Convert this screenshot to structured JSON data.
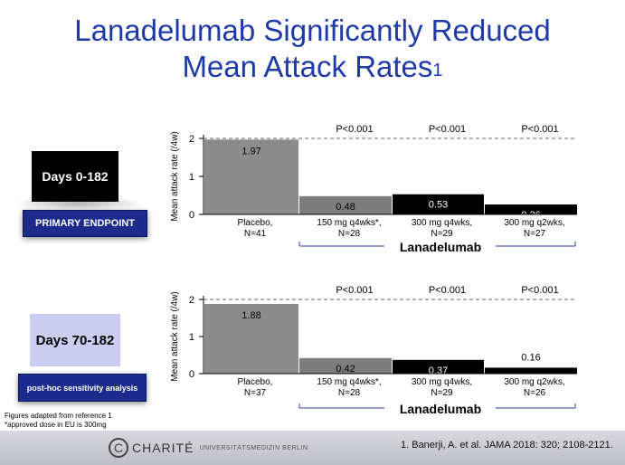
{
  "title": {
    "line1": "Lanadelumab Significantly Reduced",
    "line2": "Mean Attack Rates",
    "superscript": "1"
  },
  "panels": [
    {
      "period": "Days 0-182",
      "endpoint": "PRIMARY ENDPOINT",
      "group_label": "Lanadelumab",
      "ylabel": "Mean attack rate (/4w)"
    },
    {
      "period": "Days 70-182",
      "endpoint": "post-hoc sensitivity analysis",
      "group_label": "Lanadelumab",
      "ylabel": "Mean attack rate (/4w)"
    }
  ],
  "footnotes": {
    "line1": "Figures adapted from reference 1",
    "line2": "*approved dose in EU is 300mg"
  },
  "logo": {
    "name": "CHARITÉ",
    "sub": "UNIVERSITÄTSMEDIZIN BERLIN"
  },
  "reference": "1. Banerji, A. et al. JAMA 2018: 320; 2108-2121.",
  "colors": {
    "title": "#1f3aa6",
    "placebo": "#8c8c8c",
    "q4wks150": "#7d7d7d",
    "q4wks300": "#000000",
    "q2wks300": "#000000",
    "tag": "#1d2b8c"
  },
  "chart_data": [
    {
      "type": "bar",
      "title": "Days 0-182",
      "ylabel": "Mean attack rate (/4w)",
      "ylim": [
        0,
        2
      ],
      "yticks": [
        0,
        1,
        2
      ],
      "categories": [
        {
          "line1": "Placebo,",
          "line2": "N=41"
        },
        {
          "line1": "150 mg q4wks*,",
          "line2": "N=28"
        },
        {
          "line1": "300 mg q4wks,",
          "line2": "N=29"
        },
        {
          "line1": "300 mg q2wks,",
          "line2": "N=27"
        }
      ],
      "values": [
        1.97,
        0.48,
        0.53,
        0.26
      ],
      "value_labels": [
        "1.97",
        "0.48",
        "0.53",
        "0.26"
      ],
      "pvalues": [
        "",
        "P<0.001",
        "P<0.001",
        "P<0.001"
      ]
    },
    {
      "type": "bar",
      "title": "Days 70-182",
      "ylabel": "Mean attack rate (/4w)",
      "ylim": [
        0,
        2
      ],
      "yticks": [
        0,
        1,
        2
      ],
      "categories": [
        {
          "line1": "Placebo,",
          "line2": "N=37"
        },
        {
          "line1": "150 mg q4wks*,",
          "line2": "N=28"
        },
        {
          "line1": "300 mg q4wks,",
          "line2": "N=29"
        },
        {
          "line1": "300 mg q2wks,",
          "line2": "N=26"
        }
      ],
      "values": [
        1.88,
        0.42,
        0.37,
        0.16
      ],
      "value_labels": [
        "1.88",
        "0.42",
        "0.37",
        "0.16"
      ],
      "pvalues": [
        "",
        "P<0.001",
        "P<0.001",
        "P<0.001"
      ]
    }
  ]
}
